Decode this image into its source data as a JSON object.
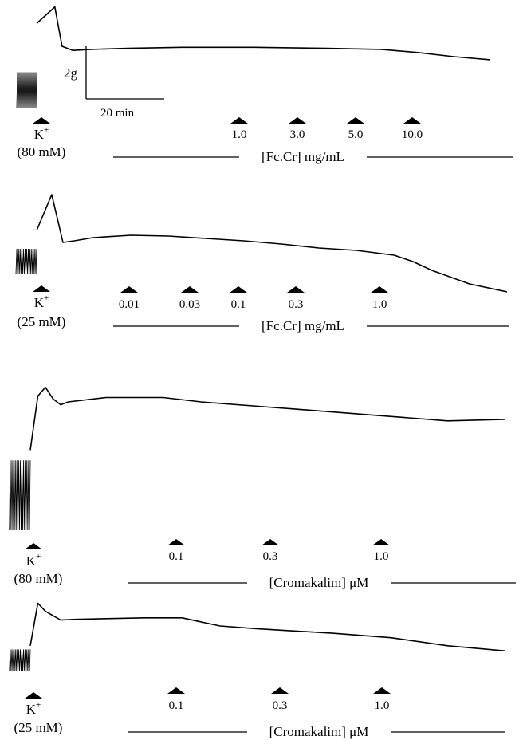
{
  "scale_bar": {
    "vertical_label": "2g",
    "horizontal_label": "20 min"
  },
  "chart_data": [
    {
      "type": "line",
      "title": "",
      "stim": {
        "ion": "K",
        "charge": "+",
        "concentration": "(80 mM)"
      },
      "agent_label": "[Fc.Cr] mg/mL",
      "doses": [
        "1.0",
        "3.0",
        "5.0",
        "10.0"
      ],
      "trace": [
        [
          0,
          0.82
        ],
        [
          5,
          0.98
        ],
        [
          7,
          0.6
        ],
        [
          10,
          0.56
        ],
        [
          15,
          0.57
        ],
        [
          25,
          0.58
        ],
        [
          40,
          0.59
        ],
        [
          60,
          0.59
        ],
        [
          80,
          0.58
        ],
        [
          95,
          0.57
        ],
        [
          105,
          0.54
        ],
        [
          115,
          0.5
        ],
        [
          125,
          0.47
        ]
      ],
      "noise_segment": {
        "t_start": -5.5,
        "t_end": 0,
        "y_low": 0.0,
        "y_high": 0.35
      }
    },
    {
      "type": "line",
      "title": "",
      "stim": {
        "ion": "K",
        "charge": "+",
        "concentration": "(25 mM)"
      },
      "agent_label": "[Fc.Cr] mg/mL",
      "doses": [
        "0.01",
        "0.03",
        "0.1",
        "0.3",
        "1.0"
      ],
      "trace": [
        [
          0,
          0.55
        ],
        [
          4,
          1.0
        ],
        [
          7,
          0.4
        ],
        [
          10,
          0.42
        ],
        [
          15,
          0.46
        ],
        [
          25,
          0.49
        ],
        [
          35,
          0.48
        ],
        [
          45,
          0.45
        ],
        [
          55,
          0.42
        ],
        [
          65,
          0.38
        ],
        [
          75,
          0.33
        ],
        [
          85,
          0.3
        ],
        [
          95,
          0.24
        ],
        [
          100,
          0.16
        ],
        [
          105,
          0.05
        ],
        [
          115,
          -0.12
        ],
        [
          125,
          -0.22
        ]
      ],
      "noise_segment": {
        "t_start": -5.5,
        "t_end": 0,
        "y_low": 0.0,
        "y_high": 0.32
      }
    },
    {
      "type": "line",
      "title": "",
      "stim": {
        "ion": "K",
        "charge": "+",
        "concentration": "(80 mM)"
      },
      "agent_label": "[Cromakalim] μM",
      "doses": [
        "0.1",
        "0.3",
        "1.0"
      ],
      "trace": [
        [
          0,
          0.55
        ],
        [
          2,
          0.92
        ],
        [
          4,
          0.98
        ],
        [
          6,
          0.9
        ],
        [
          8,
          0.86
        ],
        [
          10,
          0.88
        ],
        [
          20,
          0.91
        ],
        [
          35,
          0.91
        ],
        [
          45,
          0.88
        ],
        [
          60,
          0.85
        ],
        [
          70,
          0.83
        ],
        [
          90,
          0.79
        ],
        [
          110,
          0.75
        ],
        [
          125,
          0.76
        ]
      ],
      "noise_segment": {
        "t_start": -5.5,
        "t_end": 0,
        "y_low": 0.0,
        "y_high": 0.48
      }
    },
    {
      "type": "line",
      "title": "",
      "stim": {
        "ion": "K",
        "charge": "+",
        "concentration": "(25 mM)"
      },
      "agent_label": "[Cromakalim] μM",
      "doses": [
        "0.1",
        "0.3",
        "1.0"
      ],
      "trace": [
        [
          0,
          0.35
        ],
        [
          2,
          0.93
        ],
        [
          4,
          0.82
        ],
        [
          8,
          0.7
        ],
        [
          12,
          0.71
        ],
        [
          20,
          0.72
        ],
        [
          30,
          0.73
        ],
        [
          40,
          0.73
        ],
        [
          50,
          0.62
        ],
        [
          60,
          0.58
        ],
        [
          70,
          0.55
        ],
        [
          80,
          0.52
        ],
        [
          95,
          0.46
        ],
        [
          110,
          0.35
        ],
        [
          125,
          0.28
        ]
      ],
      "noise_segment": {
        "t_start": -5.5,
        "t_end": 0,
        "y_low": 0.0,
        "y_high": 0.3
      }
    }
  ]
}
